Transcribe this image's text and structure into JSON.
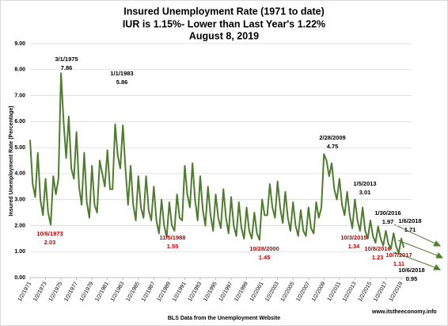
{
  "chart_data": {
    "type": "line",
    "title": [
      "Insured Unemployment Rate (1971 to date)",
      "IUR is 1.15%- Lower than Last Year's 1.22%",
      "August 8, 2019"
    ],
    "y_label": "Insured Unemployment Rate (Percentage)",
    "x_label": "BLS Data from the Unemployment Website",
    "source": "www.itstheeconomy.info",
    "ylim": [
      0,
      9
    ],
    "yticks": [
      {
        "value": 0,
        "label": "0.00"
      },
      {
        "value": 1,
        "label": "1.00"
      },
      {
        "value": 2,
        "label": "2.00"
      },
      {
        "value": 3,
        "label": "3.00"
      },
      {
        "value": 4,
        "label": "4.00"
      },
      {
        "value": 5,
        "label": "5.00"
      },
      {
        "value": 6,
        "label": "6.00"
      },
      {
        "value": 7,
        "label": "7.00"
      },
      {
        "value": 8,
        "label": "8.00"
      },
      {
        "value": 9,
        "label": "9.00"
      }
    ],
    "categories": [
      "1/2/1971",
      null,
      null,
      null,
      null,
      null,
      "1/2/1973",
      null,
      null,
      null,
      null,
      null,
      "1/2/1975",
      null,
      null,
      null,
      null,
      null,
      "1/2/1977",
      null,
      null,
      null,
      null,
      null,
      "1/2/1979",
      null,
      null,
      null,
      null,
      null,
      "1/2/1981",
      null,
      null,
      null,
      null,
      null,
      "1/2/1983",
      null,
      null,
      null,
      null,
      null,
      "1/2/1985",
      null,
      null,
      null,
      null,
      null,
      "1/2/1987",
      null,
      null,
      null,
      null,
      null,
      "1/2/1989",
      null,
      null,
      null,
      null,
      null,
      "1/2/1991",
      null,
      null,
      null,
      null,
      null,
      "1/2/1993",
      null,
      null,
      null,
      null,
      null,
      "1/2/1995",
      null,
      null,
      null,
      null,
      null,
      "1/2/1997",
      null,
      null,
      null,
      null,
      null,
      "1/2/1999",
      null,
      null,
      null,
      null,
      null,
      "1/2/2001",
      null,
      null,
      null,
      null,
      null,
      "1/2/2003",
      null,
      null,
      null,
      null,
      null,
      "1/2/2005",
      null,
      null,
      null,
      null,
      null,
      "1/2/2007",
      null,
      null,
      null,
      null,
      null,
      "1/2/2009",
      null,
      null,
      null,
      null,
      null,
      "1/2/2011",
      null,
      null,
      null,
      null,
      null,
      "1/2/2013",
      null,
      null,
      null,
      null,
      null,
      "1/2/2015",
      null,
      null,
      null,
      null,
      null,
      "1/2/2017",
      null,
      null,
      null,
      null,
      null,
      "1/2/2019",
      null
    ],
    "series": [
      {
        "name": "IUR",
        "color": "#4e7d2e",
        "values": [
          5.3,
          3.6,
          3.1,
          4.8,
          3.0,
          2.4,
          3.8,
          2.5,
          2.03,
          3.9,
          3.2,
          3.8,
          7.86,
          6.0,
          4.6,
          6.2,
          4.2,
          3.8,
          5.6,
          3.5,
          2.8,
          4.8,
          2.9,
          2.3,
          4.3,
          2.8,
          2.5,
          4.5,
          4.0,
          3.5,
          4.9,
          3.4,
          3.4,
          5.9,
          4.7,
          4.2,
          5.86,
          4.2,
          2.8,
          4.3,
          2.8,
          2.2,
          3.9,
          2.7,
          2.3,
          3.9,
          2.6,
          2.2,
          3.5,
          2.2,
          1.7,
          3.0,
          2.0,
          1.55,
          2.9,
          2.0,
          1.8,
          3.2,
          2.3,
          2.2,
          4.3,
          3.2,
          2.7,
          4.4,
          3.0,
          2.2,
          3.9,
          2.6,
          2.0,
          3.5,
          2.4,
          1.8,
          3.2,
          2.3,
          1.9,
          3.4,
          2.3,
          1.7,
          3.1,
          2.0,
          1.6,
          2.9,
          1.9,
          1.5,
          2.7,
          1.8,
          1.5,
          2.5,
          1.7,
          1.45,
          3.0,
          2.4,
          2.4,
          3.6,
          2.7,
          2.3,
          3.7,
          2.7,
          2.1,
          3.3,
          2.3,
          1.8,
          2.9,
          2.0,
          1.6,
          2.6,
          1.8,
          1.6,
          2.7,
          1.9,
          1.7,
          2.9,
          2.3,
          2.7,
          4.75,
          4.5,
          3.9,
          4.4,
          3.4,
          3.0,
          3.8,
          2.8,
          2.4,
          3.3,
          2.4,
          1.9,
          3.01,
          2.2,
          1.8,
          2.7,
          1.8,
          1.5,
          2.2,
          1.6,
          1.34,
          1.97,
          1.5,
          1.23,
          1.8,
          1.3,
          1.11,
          1.71,
          1.2,
          0.95,
          1.5,
          1.15
        ]
      }
    ],
    "annotations": [
      {
        "date": "3/1/1975",
        "value": 7.86,
        "color": "#000000"
      },
      {
        "date": "1/1/1983",
        "value": 5.86,
        "color": "#000000"
      },
      {
        "date": "10/6/1973",
        "value": 2.03,
        "color": "#c00000"
      },
      {
        "date": "11/5/1988",
        "value": 1.55,
        "color": "#c00000"
      },
      {
        "date": "10/28/2000",
        "value": 1.45,
        "color": "#c00000"
      },
      {
        "date": "2/28/2009",
        "value": 4.75,
        "color": "#000000"
      },
      {
        "date": "1/5/2013",
        "value": 3.01,
        "color": "#000000"
      },
      {
        "date": "10/3/2015",
        "value": 1.34,
        "color": "#c00000"
      },
      {
        "date": "1/30/2016",
        "value": 1.97,
        "color": "#000000"
      },
      {
        "date": "10/8/2016",
        "value": 1.23,
        "color": "#c00000"
      },
      {
        "date": "1/6/2018",
        "value": 1.71,
        "color": "#000000"
      },
      {
        "date": "10/7/2017",
        "value": 1.11,
        "color": "#c00000"
      },
      {
        "date": "10/6/2018",
        "value": 0.95,
        "color": "#000000"
      }
    ],
    "grid": true
  }
}
